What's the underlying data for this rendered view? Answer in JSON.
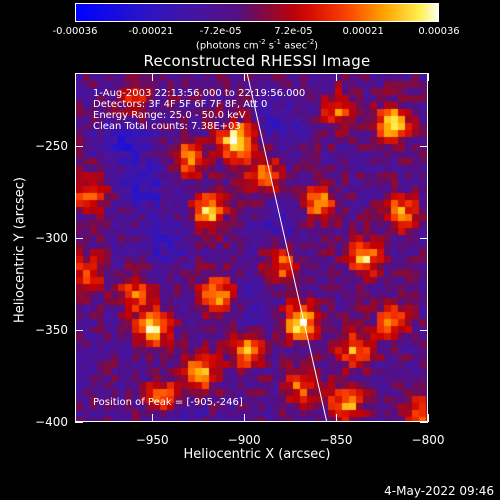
{
  "colorbar": {
    "ticks": [
      "-0.00036",
      "-0.00021",
      "-7.2e-05",
      "7.2e-05",
      "0.00021",
      "0.00036"
    ],
    "units_main": "(photons cm",
    "units_sup1": "-2",
    "units_s": " s",
    "units_sup2": "-1",
    "units_asec": " asec",
    "units_sup3": "-2",
    "units_close": ")"
  },
  "chart_data": {
    "type": "heatmap",
    "title": "Reconstructed RHESSI Image",
    "xlabel": "Heliocentric X (arcsec)",
    "ylabel": "Heliocentric Y (arcsec)",
    "xlim": [
      -992,
      -800
    ],
    "ylim": [
      -400,
      -210
    ],
    "xticks": [
      -950,
      -900,
      -850,
      -800
    ],
    "yticks": [
      -250,
      -300,
      -350,
      -400
    ],
    "clim": [
      -0.00036,
      0.00036
    ],
    "colormap": "rainbow-blue-purple-red-yellow-white",
    "peak_position": [
      -905,
      -246
    ],
    "bright_regions": [
      {
        "x": -905,
        "y": -246,
        "level": 1.0
      },
      {
        "x": -820,
        "y": -237,
        "level": 0.9
      },
      {
        "x": -870,
        "y": -345,
        "level": 0.95
      },
      {
        "x": -930,
        "y": -255,
        "level": 0.7
      },
      {
        "x": -920,
        "y": -285,
        "level": 0.8
      },
      {
        "x": -890,
        "y": -265,
        "level": 0.7
      },
      {
        "x": -915,
        "y": -330,
        "level": 0.75
      },
      {
        "x": -900,
        "y": -360,
        "level": 0.7
      },
      {
        "x": -860,
        "y": -280,
        "level": 0.75
      },
      {
        "x": -835,
        "y": -310,
        "level": 0.8
      },
      {
        "x": -815,
        "y": -285,
        "level": 0.7
      },
      {
        "x": -840,
        "y": -360,
        "level": 0.7
      },
      {
        "x": -820,
        "y": -345,
        "level": 0.65
      },
      {
        "x": -950,
        "y": -348,
        "level": 0.85
      },
      {
        "x": -960,
        "y": -330,
        "level": 0.55
      },
      {
        "x": -945,
        "y": -385,
        "level": 0.6
      },
      {
        "x": -925,
        "y": -372,
        "level": 0.8
      },
      {
        "x": -845,
        "y": -390,
        "level": 0.75
      },
      {
        "x": -870,
        "y": -380,
        "level": 0.55
      },
      {
        "x": -985,
        "y": -275,
        "level": 0.6
      },
      {
        "x": -985,
        "y": -318,
        "level": 0.55
      },
      {
        "x": -960,
        "y": -225,
        "level": 0.5
      },
      {
        "x": -880,
        "y": -315,
        "level": 0.6
      },
      {
        "x": -850,
        "y": -230,
        "level": 0.6
      },
      {
        "x": -805,
        "y": -395,
        "level": 0.55
      }
    ],
    "dark_regions": [
      {
        "x": -965,
        "y": -245,
        "level": 0.9
      },
      {
        "x": -945,
        "y": -300,
        "level": 0.7
      },
      {
        "x": -955,
        "y": -270,
        "level": 0.8
      },
      {
        "x": -880,
        "y": -290,
        "level": 0.6
      },
      {
        "x": -895,
        "y": -335,
        "level": 0.5
      },
      {
        "x": -935,
        "y": -395,
        "level": 0.5
      },
      {
        "x": -880,
        "y": -235,
        "level": 0.6
      }
    ],
    "limb_line": {
      "x1": -900,
      "y1": -205,
      "x2": -855,
      "y2": -402
    }
  },
  "info": {
    "line1": "1-Aug-2003 22:13:56.000 to 22:19:56.000",
    "line2": "Detectors: 3F 4F 5F 6F 7F 8F, Att 0",
    "line3": "Energy Range: 25.0 - 50.0 keV",
    "line4": "Clean    Total counts: 7.38E+03",
    "peak": "Position of Peak = [-905,-246]"
  },
  "timestamp": "4-May-2022 09:46"
}
